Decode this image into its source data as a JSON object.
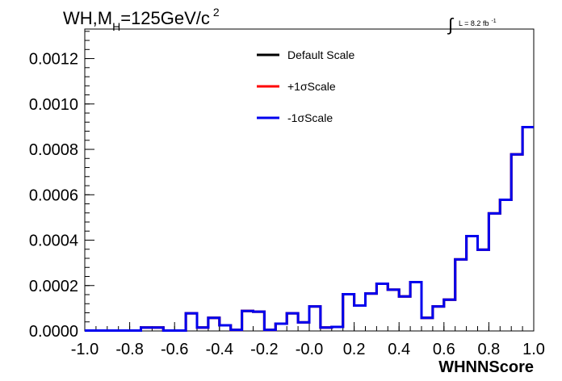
{
  "chart_data": {
    "type": "histogram",
    "title_main": "WH,M",
    "title_sub": "H",
    "title_rest": "=125GeV/c",
    "title_sup": "2",
    "lumi_integral": "∫",
    "lumi_text": "L = 8.2 fb",
    "lumi_sup": "-1",
    "xlabel": "WHNNScore",
    "xlim": [
      -1.0,
      1.0
    ],
    "ylim": [
      0,
      0.00133
    ],
    "x_ticks": [
      "-1.0",
      "-0.8",
      "-0.6",
      "-0.4",
      "-0.2",
      "-0.0",
      "0.2",
      "0.4",
      "0.6",
      "0.8",
      "1.0"
    ],
    "y_ticks": [
      "0.0000",
      "0.0002",
      "0.0004",
      "0.0006",
      "0.0008",
      "0.0010",
      "0.0012"
    ],
    "bin_edges_start": -1.0,
    "bin_width": 0.05,
    "series": [
      {
        "name": "Default Scale",
        "color": "#000000",
        "values": [
          2e-06,
          2e-06,
          2e-06,
          2e-06,
          2e-06,
          1.5e-05,
          1.5e-05,
          2e-06,
          2e-06,
          7.8e-05,
          1.5e-05,
          5.8e-05,
          2.5e-05,
          5e-06,
          8.8e-05,
          8.5e-05,
          5e-06,
          3.2e-05,
          7.8e-05,
          3.8e-05,
          0.000108,
          1.5e-05,
          1.8e-05,
          0.000162,
          0.000112,
          0.000165,
          0.000208,
          0.000182,
          0.000152,
          0.000215,
          5.8e-05,
          0.000108,
          0.000138,
          0.000315,
          0.000418,
          0.000358,
          0.000518,
          0.000578,
          0.000778,
          0.000898
        ]
      },
      {
        "name": "+1σScale",
        "color": "#ff0000",
        "values": [
          2e-06,
          2e-06,
          2e-06,
          2e-06,
          2e-06,
          1.5e-05,
          1.5e-05,
          2e-06,
          2e-06,
          7.8e-05,
          1.5e-05,
          5.8e-05,
          2.5e-05,
          5e-06,
          8.8e-05,
          8.5e-05,
          5e-06,
          3.2e-05,
          7.8e-05,
          3.8e-05,
          0.000108,
          1.5e-05,
          1.8e-05,
          0.000162,
          0.000112,
          0.000165,
          0.000208,
          0.000182,
          0.000152,
          0.000215,
          5.8e-05,
          0.000108,
          0.000138,
          0.000315,
          0.000418,
          0.000358,
          0.000518,
          0.000578,
          0.000778,
          0.000898
        ]
      },
      {
        "name": "-1σScale",
        "color": "#0000ee",
        "values": [
          2e-06,
          2e-06,
          2e-06,
          2e-06,
          2e-06,
          1.5e-05,
          1.5e-05,
          2e-06,
          2e-06,
          7.8e-05,
          1.5e-05,
          5.8e-05,
          2.5e-05,
          5e-06,
          8.8e-05,
          8.5e-05,
          5e-06,
          3.2e-05,
          7.8e-05,
          3.8e-05,
          0.000108,
          1.5e-05,
          1.8e-05,
          0.000162,
          0.000112,
          0.000165,
          0.000208,
          0.000182,
          0.000152,
          0.000215,
          5.8e-05,
          0.000108,
          0.000138,
          0.000315,
          0.000418,
          0.000358,
          0.000518,
          0.000578,
          0.000778,
          0.000898
        ]
      }
    ],
    "legend_placement": "top-center",
    "grid": false
  }
}
